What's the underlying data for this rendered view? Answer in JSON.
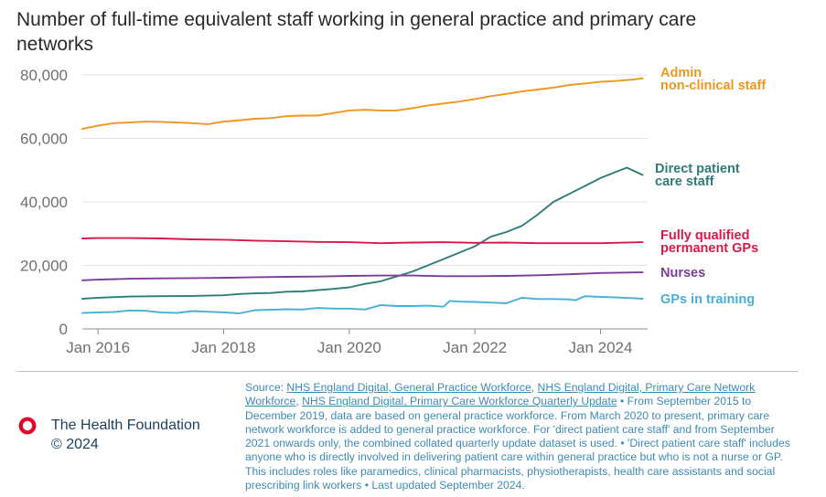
{
  "title": "Number of full-time equivalent staff working in general practice and primary care networks",
  "chart_data": {
    "type": "line",
    "ylim": [
      0,
      80000
    ],
    "yticks": [
      0,
      20000,
      40000,
      60000,
      80000
    ],
    "ytick_labels": [
      "0",
      "20,000",
      "40,000",
      "60,000",
      "80,000"
    ],
    "xlim": [
      2015.75,
      2024.75
    ],
    "xticks": [
      2016,
      2018,
      2020,
      2022,
      2024
    ],
    "xtick_labels": [
      "Jan 2016",
      "Jan 2018",
      "Jan 2020",
      "Jan 2022",
      "Jan 2024"
    ],
    "grid": "horizontal",
    "series": [
      {
        "name": "Admin non-clinical staff",
        "label_lines": [
          "Admin",
          "non-clinical staff"
        ],
        "color": "#f0961e",
        "x": [
          2015.75,
          2016.0,
          2016.25,
          2016.5,
          2016.75,
          2017.0,
          2017.25,
          2017.5,
          2017.75,
          2018.0,
          2018.25,
          2018.5,
          2018.75,
          2019.0,
          2019.25,
          2019.5,
          2019.75,
          2020.0,
          2020.25,
          2020.5,
          2020.75,
          2021.0,
          2021.25,
          2021.5,
          2021.75,
          2022.0,
          2022.25,
          2022.5,
          2022.75,
          2023.0,
          2023.25,
          2023.5,
          2023.75,
          2024.0,
          2024.25,
          2024.5,
          2024.67
        ],
        "y": [
          63000,
          64000,
          64800,
          65000,
          65300,
          65200,
          65000,
          64800,
          64500,
          65300,
          65700,
          66200,
          66400,
          67000,
          67200,
          67200,
          68000,
          68800,
          69000,
          68800,
          68800,
          69500,
          70400,
          71000,
          71600,
          72400,
          73300,
          74000,
          74800,
          75400,
          76000,
          76800,
          77300,
          77800,
          78100,
          78500,
          78900
        ]
      },
      {
        "name": "Direct patient care staff",
        "label_lines": [
          "Direct patient",
          "care staff"
        ],
        "color": "#2e7d78",
        "x": [
          2015.75,
          2016.0,
          2016.5,
          2017.0,
          2017.5,
          2018.0,
          2018.25,
          2018.5,
          2018.75,
          2019.0,
          2019.25,
          2019.5,
          2019.75,
          2020.0,
          2020.25,
          2020.5,
          2020.75,
          2021.0,
          2021.25,
          2021.5,
          2021.75,
          2022.0,
          2022.25,
          2022.5,
          2022.75,
          2023.0,
          2023.25,
          2023.5,
          2023.75,
          2024.0,
          2024.25,
          2024.42,
          2024.67
        ],
        "y": [
          9500,
          9800,
          10200,
          10300,
          10400,
          10600,
          11000,
          11200,
          11300,
          11700,
          11800,
          12200,
          12600,
          13100,
          14200,
          15000,
          16500,
          18000,
          20000,
          22000,
          24000,
          26000,
          29000,
          30500,
          32500,
          36000,
          40000,
          42500,
          45000,
          47500,
          49500,
          50800,
          48500
        ]
      },
      {
        "name": "Fully qualified permanent GPs",
        "label_lines": [
          "Fully qualified",
          "permanent GPs"
        ],
        "color": "#d7194a",
        "x": [
          2015.75,
          2016.0,
          2016.5,
          2017.0,
          2017.5,
          2018.0,
          2018.5,
          2019.0,
          2019.5,
          2020.0,
          2020.5,
          2021.0,
          2021.5,
          2022.0,
          2022.5,
          2023.0,
          2023.5,
          2024.0,
          2024.67
        ],
        "y": [
          28500,
          28600,
          28600,
          28500,
          28200,
          28100,
          27800,
          27600,
          27400,
          27300,
          27000,
          27200,
          27300,
          27100,
          27200,
          27000,
          27000,
          27000,
          27300
        ]
      },
      {
        "name": "Nurses",
        "label_lines": [
          "Nurses"
        ],
        "color": "#7d3c98",
        "x": [
          2015.75,
          2016.0,
          2016.5,
          2017.0,
          2017.5,
          2018.0,
          2018.5,
          2019.0,
          2019.5,
          2020.0,
          2020.5,
          2021.0,
          2021.5,
          2022.0,
          2022.5,
          2023.0,
          2023.5,
          2024.0,
          2024.67
        ],
        "y": [
          15300,
          15500,
          15800,
          15900,
          16000,
          16100,
          16300,
          16400,
          16500,
          16700,
          16800,
          16800,
          16600,
          16600,
          16700,
          16900,
          17200,
          17600,
          17800
        ]
      },
      {
        "name": "GPs in training",
        "label_lines": [
          "GPs in training"
        ],
        "color": "#4aaed6",
        "x": [
          2015.75,
          2016.0,
          2016.25,
          2016.5,
          2016.75,
          2017.0,
          2017.25,
          2017.5,
          2017.75,
          2018.0,
          2018.25,
          2018.5,
          2018.75,
          2019.0,
          2019.25,
          2019.5,
          2019.75,
          2020.0,
          2020.25,
          2020.5,
          2020.75,
          2021.0,
          2021.25,
          2021.5,
          2021.6,
          2021.75,
          2022.0,
          2022.25,
          2022.5,
          2022.75,
          2023.0,
          2023.25,
          2023.5,
          2023.6,
          2023.75,
          2024.0,
          2024.25,
          2024.5,
          2024.67
        ],
        "y": [
          5000,
          5200,
          5300,
          5800,
          5700,
          5200,
          5000,
          5600,
          5400,
          5200,
          4900,
          5900,
          6000,
          6200,
          6100,
          6600,
          6400,
          6400,
          6100,
          7500,
          7200,
          7200,
          7300,
          7000,
          8800,
          8600,
          8500,
          8300,
          8100,
          9800,
          9400,
          9400,
          9300,
          9000,
          10300,
          10100,
          9900,
          9700,
          9500
        ]
      }
    ]
  },
  "footer": {
    "org_name": "The Health Foundation",
    "copyright": "© 2024",
    "source_prefix": "Source: ",
    "source_links": [
      "NHS England Digital, General Practice Workforce",
      "NHS England Digital, Primary Care Network Workforce",
      "NHS England Digital, Primary Care Workforce Quarterly Update"
    ],
    "source_sep": ", ",
    "source_text": " • From September 2015 to December 2019, data are based on general practice workforce. From March 2020 to present, primary care network workforce is added to general practice workforce. For 'direct patient care staff' and from September 2021 onwards only, the combined collated quarterly update dataset is used. • 'Direct patient care staff' includes anyone who is directly involved in delivering patient care within general practice but who is not a nurse or GP. This includes roles like paramedics, clinical pharmacists, physiotherapists, health care assistants and social prescribing link workers • Last updated September 2024."
  },
  "colors": {
    "logo": "#e4002b",
    "title": "#2a2a2a",
    "org": "#1b3f5f",
    "source": "#3d8bb5"
  }
}
